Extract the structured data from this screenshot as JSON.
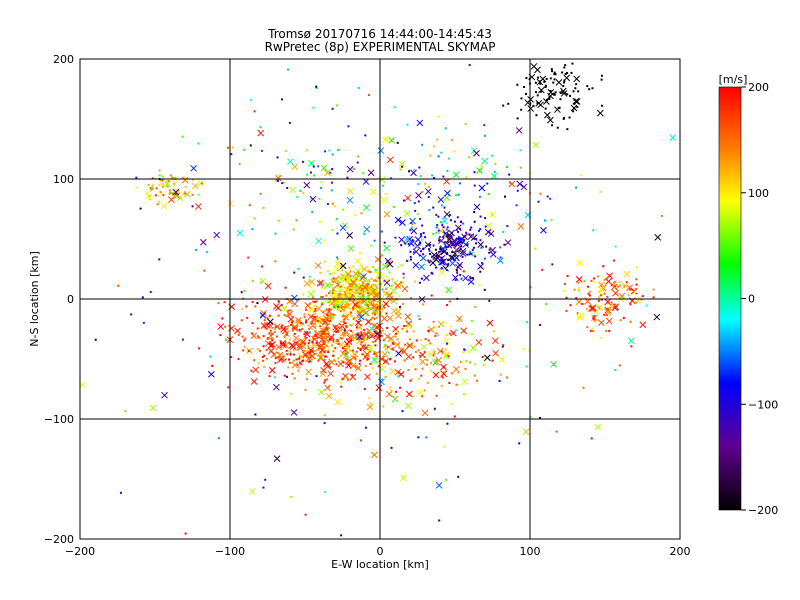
{
  "chart_data": {
    "type": "scatter",
    "title": "Tromsø 20170716 14:44:00-14:45:43",
    "subtitle": "RwPretec (8p) EXPERIMENTAL SKYMAP",
    "xlabel": "E-W location [km]",
    "ylabel": "N-S location [km]",
    "xlim": [
      -200,
      200
    ],
    "ylim": [
      -200,
      200
    ],
    "xticks": [
      "−200",
      "−100",
      "0",
      "100",
      "200"
    ],
    "yticks": [
      "−200",
      "−100",
      "0",
      "100",
      "200"
    ],
    "x_tick_values": [
      -200,
      -100,
      0,
      100,
      200
    ],
    "y_tick_values": [
      -200,
      -100,
      0,
      100,
      200
    ],
    "grid": true,
    "colorbar": {
      "label": "[m/s]",
      "range": [
        -200,
        200
      ],
      "ticks": [
        "200",
        "100",
        "0",
        "−100",
        "−200"
      ],
      "tick_values": [
        200,
        100,
        0,
        -100,
        -200
      ],
      "placement": "right"
    },
    "clusters": [
      {
        "cx": -15,
        "cy": 5,
        "sx": 14,
        "sy": 12,
        "n": 420,
        "vmean": 110,
        "vspread": 60
      },
      {
        "cx": -30,
        "cy": -35,
        "sx": 28,
        "sy": 14,
        "n": 380,
        "vmean": 160,
        "vspread": 50
      },
      {
        "cx": -60,
        "cy": -30,
        "sx": 25,
        "sy": 18,
        "n": 160,
        "vmean": 180,
        "vspread": 30
      },
      {
        "cx": 45,
        "cy": 45,
        "sx": 16,
        "sy": 14,
        "n": 220,
        "vmean": -120,
        "vspread": 70
      },
      {
        "cx": 115,
        "cy": 170,
        "sx": 14,
        "sy": 14,
        "n": 110,
        "vmean": -200,
        "vspread": 5
      },
      {
        "cx": 150,
        "cy": 0,
        "sx": 12,
        "sy": 14,
        "n": 130,
        "vmean": 150,
        "vspread": 60
      },
      {
        "cx": -140,
        "cy": 92,
        "sx": 10,
        "sy": 6,
        "n": 70,
        "vmean": 120,
        "vspread": 70
      },
      {
        "cx": 20,
        "cy": -50,
        "sx": 30,
        "sy": 20,
        "n": 160,
        "vmean": 140,
        "vspread": 80
      },
      {
        "cx": 10,
        "cy": 90,
        "sx": 55,
        "sy": 30,
        "n": 200,
        "vmean": 0,
        "vspread": 150
      },
      {
        "cx": 0,
        "cy": 0,
        "sx": 90,
        "sy": 90,
        "n": 260,
        "vmean": 0,
        "vspread": 200
      }
    ],
    "seed": 20170716
  }
}
